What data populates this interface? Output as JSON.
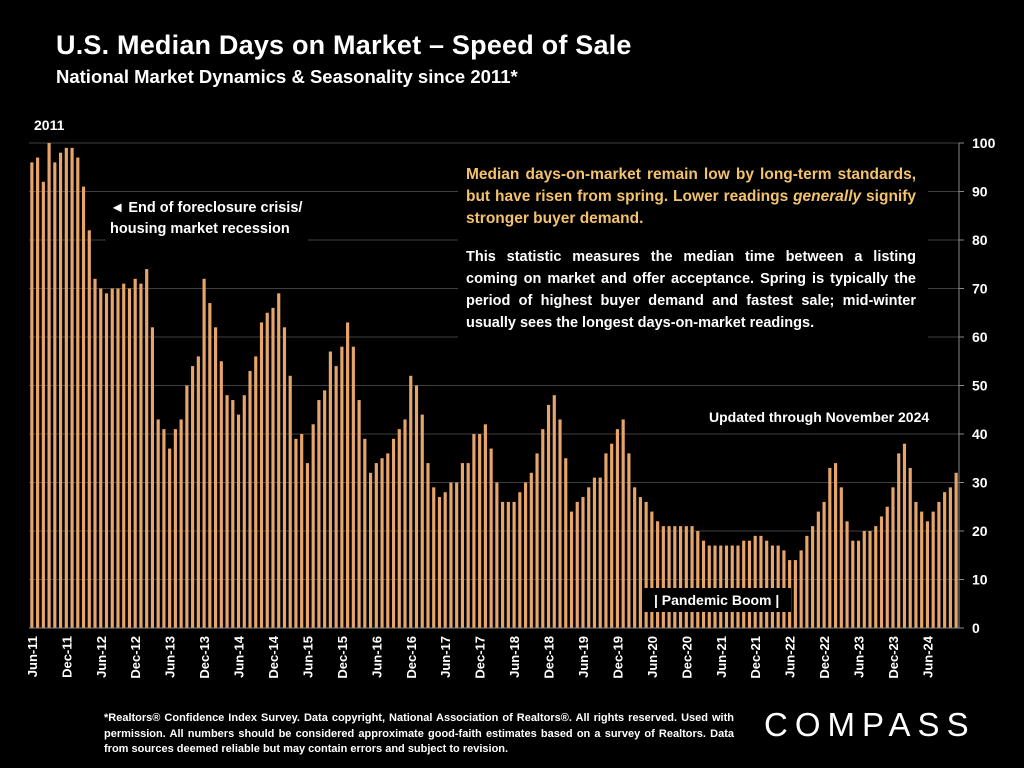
{
  "header": {
    "title": "U.S. Median Days on Market – Speed of Sale",
    "subtitle": "National Market Dynamics & Seasonality since 2011*"
  },
  "annotations": {
    "year_start": "2011",
    "recession": [
      "◄ End of foreclosure crisis/",
      "housing market recession"
    ],
    "callout_pre": "Median days-on-market remain low by long-term standards, but have risen from spring. Lower readings ",
    "callout_em": "generally",
    "callout_post": " signify stronger buyer demand.",
    "description": "This statistic measures the median time between a listing coming on market and offer acceptance. Spring is typically the period of highest buyer demand and fastest sale; mid-winter usually sees the longest days-on-market readings.",
    "updated": "Updated through November 2024",
    "pandemic": "| Pandemic Boom |"
  },
  "footnote": "*Realtors® Confidence Index Survey. Data copyright, National Association of Realtors®. All rights reserved. Used with permission. All numbers should be considered approximate good-faith estimates based on a survey of Realtors. Data from sources deemed reliable but may contain errors and subject to revision.",
  "logo": "COMPASS",
  "colors": {
    "bar": "#e8a56a",
    "background": "#000000",
    "callout": "#f3c26b",
    "grid": "#555555"
  },
  "chart_data": {
    "type": "bar",
    "title": "U.S. Median Days on Market – Speed of Sale",
    "xlabel": "",
    "ylabel": "",
    "ylim": [
      0,
      100
    ],
    "yticks": [
      0,
      10,
      20,
      30,
      40,
      50,
      60,
      70,
      80,
      90,
      100
    ],
    "grid": true,
    "y_axis_side": "right",
    "x_tick_labels": [
      "Jun-11",
      "Dec-11",
      "Jun-12",
      "Dec-12",
      "Jun-13",
      "Dec-13",
      "Jun-14",
      "Dec-14",
      "Jun-15",
      "Dec-15",
      "Jun-16",
      "Dec-16",
      "Jun-17",
      "Dec-17",
      "Jun-18",
      "Dec-18",
      "Jun-19",
      "Dec-19",
      "Jun-20",
      "Dec-20",
      "Jun-21",
      "Dec-21",
      "Jun-22",
      "Dec-22",
      "Jun-23",
      "Dec-23",
      "Jun-24"
    ],
    "start_month": "Jun-11",
    "end_month": "Nov-24",
    "series": [
      {
        "values": [
          96,
          97,
          92,
          100,
          96,
          98,
          99,
          99,
          97,
          91,
          82,
          72,
          70,
          69,
          70,
          70,
          71,
          70,
          72,
          71,
          74,
          62,
          43,
          41,
          37,
          41,
          43,
          50,
          54,
          56,
          72,
          67,
          62,
          55,
          48,
          47,
          44,
          48,
          53,
          56,
          63,
          65,
          66,
          69,
          62,
          52,
          39,
          40,
          34,
          42,
          47,
          49,
          57,
          54,
          58,
          63,
          58,
          47,
          39,
          32,
          34,
          35,
          36,
          39,
          41,
          43,
          52,
          50,
          44,
          34,
          29,
          27,
          28,
          30,
          30,
          34,
          34,
          40,
          40,
          42,
          37,
          30,
          26,
          26,
          26,
          28,
          30,
          32,
          36,
          41,
          46,
          48,
          43,
          35,
          24,
          26,
          27,
          29,
          31,
          31,
          36,
          38,
          41,
          43,
          36,
          29,
          27,
          26,
          24,
          22,
          21,
          21,
          21,
          21,
          21,
          21,
          20,
          18,
          17,
          17,
          17,
          17,
          17,
          17,
          18,
          18,
          19,
          19,
          18,
          17,
          17,
          16,
          14,
          14,
          16,
          19,
          21,
          24,
          26,
          33,
          34,
          29,
          22,
          18,
          18,
          20,
          20,
          21,
          23,
          25,
          29,
          36,
          38,
          33,
          26,
          24,
          22,
          24,
          26,
          28,
          29,
          32
        ]
      }
    ]
  }
}
